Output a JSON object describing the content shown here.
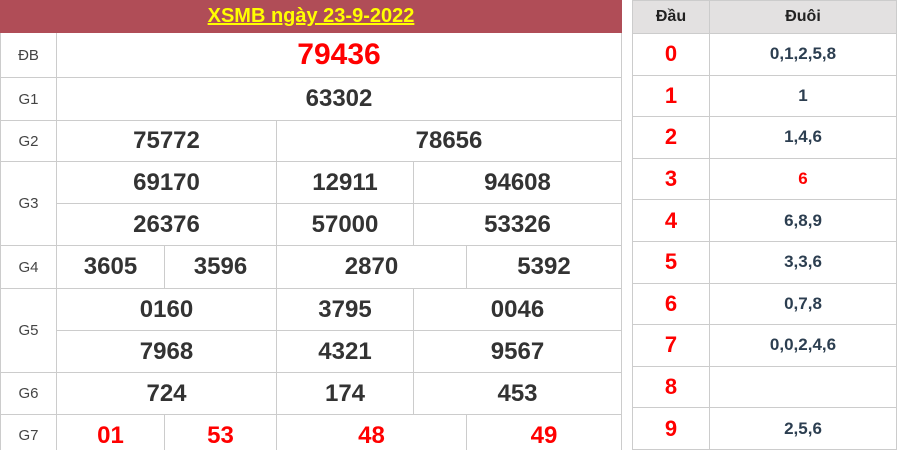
{
  "header": {
    "title": "XSMB ngày 23-9-2022"
  },
  "results": {
    "rows": [
      {
        "label": "ĐB",
        "cells": [
          "79436"
        ]
      },
      {
        "label": "G1",
        "cells": [
          "63302"
        ]
      },
      {
        "label": "G2",
        "cells": [
          "75772",
          "78656"
        ]
      },
      {
        "label": "G3",
        "cells": [
          "69170",
          "12911",
          "94608",
          "26376",
          "57000",
          "53326"
        ]
      },
      {
        "label": "G4",
        "cells": [
          "3605",
          "3596",
          "2870",
          "5392"
        ]
      },
      {
        "label": "G5",
        "cells": [
          "0160",
          "3795",
          "0046",
          "7968",
          "4321",
          "9567"
        ]
      },
      {
        "label": "G6",
        "cells": [
          "724",
          "174",
          "453"
        ]
      },
      {
        "label": "G7",
        "cells": [
          "01",
          "53",
          "48",
          "49"
        ]
      }
    ]
  },
  "head_tail": {
    "col_dau": "Đầu",
    "col_duoi": "Đuôi",
    "rows": [
      {
        "dau": "0",
        "duoi": "0,1,2,5,8"
      },
      {
        "dau": "1",
        "duoi": "1"
      },
      {
        "dau": "2",
        "duoi": "1,4,6"
      },
      {
        "dau": "3",
        "duoi": "6"
      },
      {
        "dau": "4",
        "duoi": "6,8,9"
      },
      {
        "dau": "5",
        "duoi": "3,3,6"
      },
      {
        "dau": "6",
        "duoi": "0,7,8"
      },
      {
        "dau": "7",
        "duoi": "0,0,2,4,6"
      },
      {
        "dau": "8",
        "duoi": ""
      },
      {
        "dau": "9",
        "duoi": "2,5,6"
      }
    ]
  },
  "colors": {
    "title_bar_bg": "#b04d57",
    "title_text": "#ffff00",
    "special_red": "#ff0000",
    "number_color": "#333333",
    "tail_text": "#2c3e50",
    "head_tail_header_bg": "#e3e1e1",
    "border": "#cccccc"
  }
}
